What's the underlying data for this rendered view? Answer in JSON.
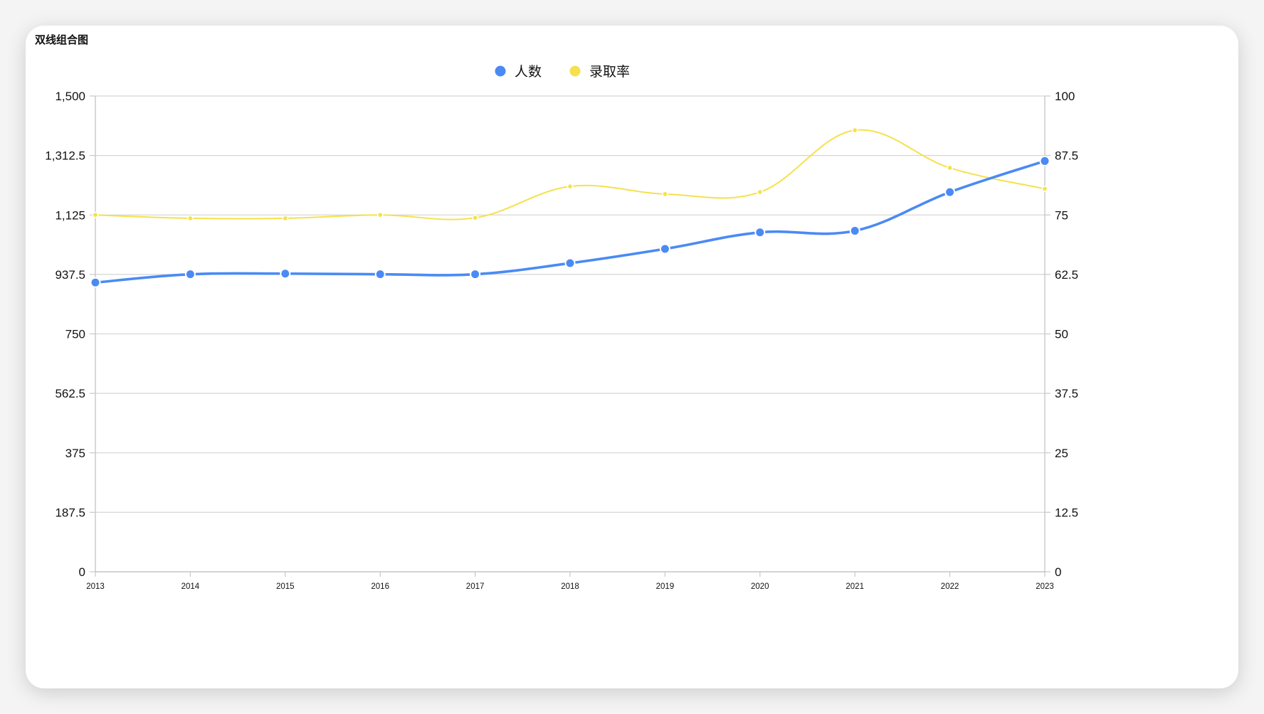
{
  "card": {
    "title": "双线组合图"
  },
  "chart_data": {
    "type": "line",
    "title": "双线组合图",
    "categories": [
      "2013",
      "2014",
      "2015",
      "2016",
      "2017",
      "2018",
      "2019",
      "2020",
      "2021",
      "2022",
      "2023"
    ],
    "series": [
      {
        "name": "人数",
        "axis": "left",
        "color": "#4a8af4",
        "values": [
          912,
          938,
          940,
          938,
          938,
          973,
          1018,
          1070,
          1075,
          1197,
          1295
        ]
      },
      {
        "name": "录取率",
        "axis": "right",
        "color": "#f5e14c",
        "values": [
          75,
          74.3,
          74.3,
          75,
          74.4,
          81,
          79.4,
          79.8,
          92.8,
          84.9,
          80.5
        ]
      }
    ],
    "left_axis": {
      "ylim": [
        0,
        1500
      ],
      "ticks": [
        "0",
        "187.5",
        "375",
        "562.5",
        "750",
        "937.5",
        "1,125",
        "1,312.5",
        "1,500"
      ]
    },
    "right_axis": {
      "ylim": [
        0,
        100
      ],
      "ticks": [
        "0",
        "12.5",
        "25",
        "37.5",
        "50",
        "62.5",
        "75",
        "87.5",
        "100"
      ]
    },
    "legend": {
      "position": "top-center",
      "items": [
        "人数",
        "录取率"
      ]
    },
    "grid": true
  }
}
